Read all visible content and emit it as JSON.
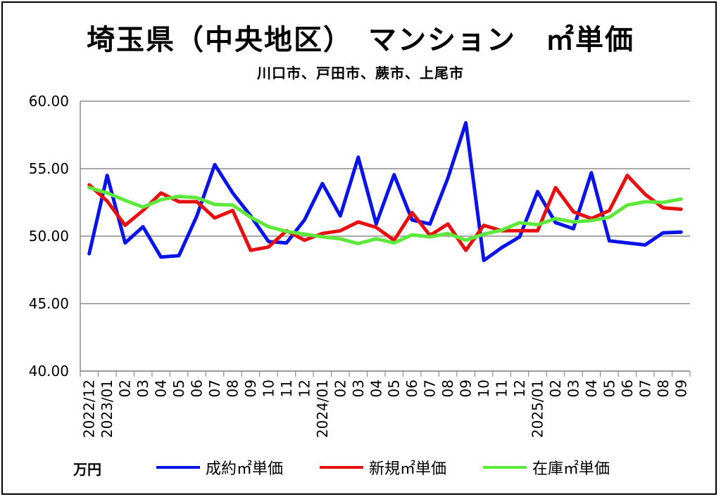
{
  "title": "埼玉県（中央地区）　マンション　㎡単価",
  "subtitle": "川口市、戸田市、蕨市、上尾市",
  "unit_label": "万円",
  "chart_data": {
    "type": "line",
    "ylim": [
      40,
      60
    ],
    "yticks": [
      "40.00",
      "45.00",
      "50.00",
      "55.00",
      "60.00"
    ],
    "grid": true,
    "legend_position": "bottom",
    "categories": [
      "2022/12",
      "2023/01",
      "02",
      "03",
      "04",
      "05",
      "06",
      "07",
      "08",
      "09",
      "10",
      "11",
      "12",
      "2024/01",
      "02",
      "03",
      "04",
      "05",
      "06",
      "07",
      "08",
      "09",
      "10",
      "11",
      "12",
      "2025/01",
      "02",
      "03",
      "04",
      "05",
      "06",
      "07",
      "08",
      "09"
    ],
    "series": [
      {
        "name": "成約㎡単価",
        "color": "#0a14e6",
        "values": [
          48.7,
          54.5,
          49.5,
          50.7,
          48.45,
          48.55,
          51.5,
          55.3,
          53.2,
          51.5,
          49.6,
          49.5,
          51.2,
          53.9,
          51.5,
          55.85,
          50.9,
          54.55,
          51.2,
          50.9,
          54.3,
          58.4,
          48.2,
          49.15,
          49.95,
          53.3,
          51.0,
          50.55,
          54.7,
          49.65,
          49.5,
          49.35,
          50.25,
          50.3
        ]
      },
      {
        "name": "新規㎡単価",
        "color": "#e61010",
        "values": [
          53.8,
          52.6,
          50.8,
          51.9,
          53.2,
          52.55,
          52.55,
          51.35,
          51.9,
          48.95,
          49.2,
          50.4,
          49.7,
          50.2,
          50.4,
          51.05,
          50.65,
          49.7,
          51.75,
          50.05,
          50.9,
          48.95,
          50.8,
          50.4,
          50.4,
          50.4,
          53.6,
          51.8,
          51.3,
          51.9,
          54.5,
          53.1,
          52.1,
          52.0
        ]
      },
      {
        "name": "在庫㎡単価",
        "color": "#5ee83c",
        "values": [
          53.6,
          53.2,
          52.65,
          52.15,
          52.7,
          52.95,
          52.85,
          52.35,
          52.3,
          51.4,
          50.7,
          50.35,
          50.15,
          49.95,
          49.8,
          49.45,
          49.8,
          49.5,
          50.1,
          49.95,
          50.2,
          49.7,
          50.15,
          50.45,
          51.0,
          50.85,
          51.3,
          51.05,
          51.15,
          51.4,
          52.3,
          52.55,
          52.5,
          52.75
        ]
      }
    ]
  }
}
